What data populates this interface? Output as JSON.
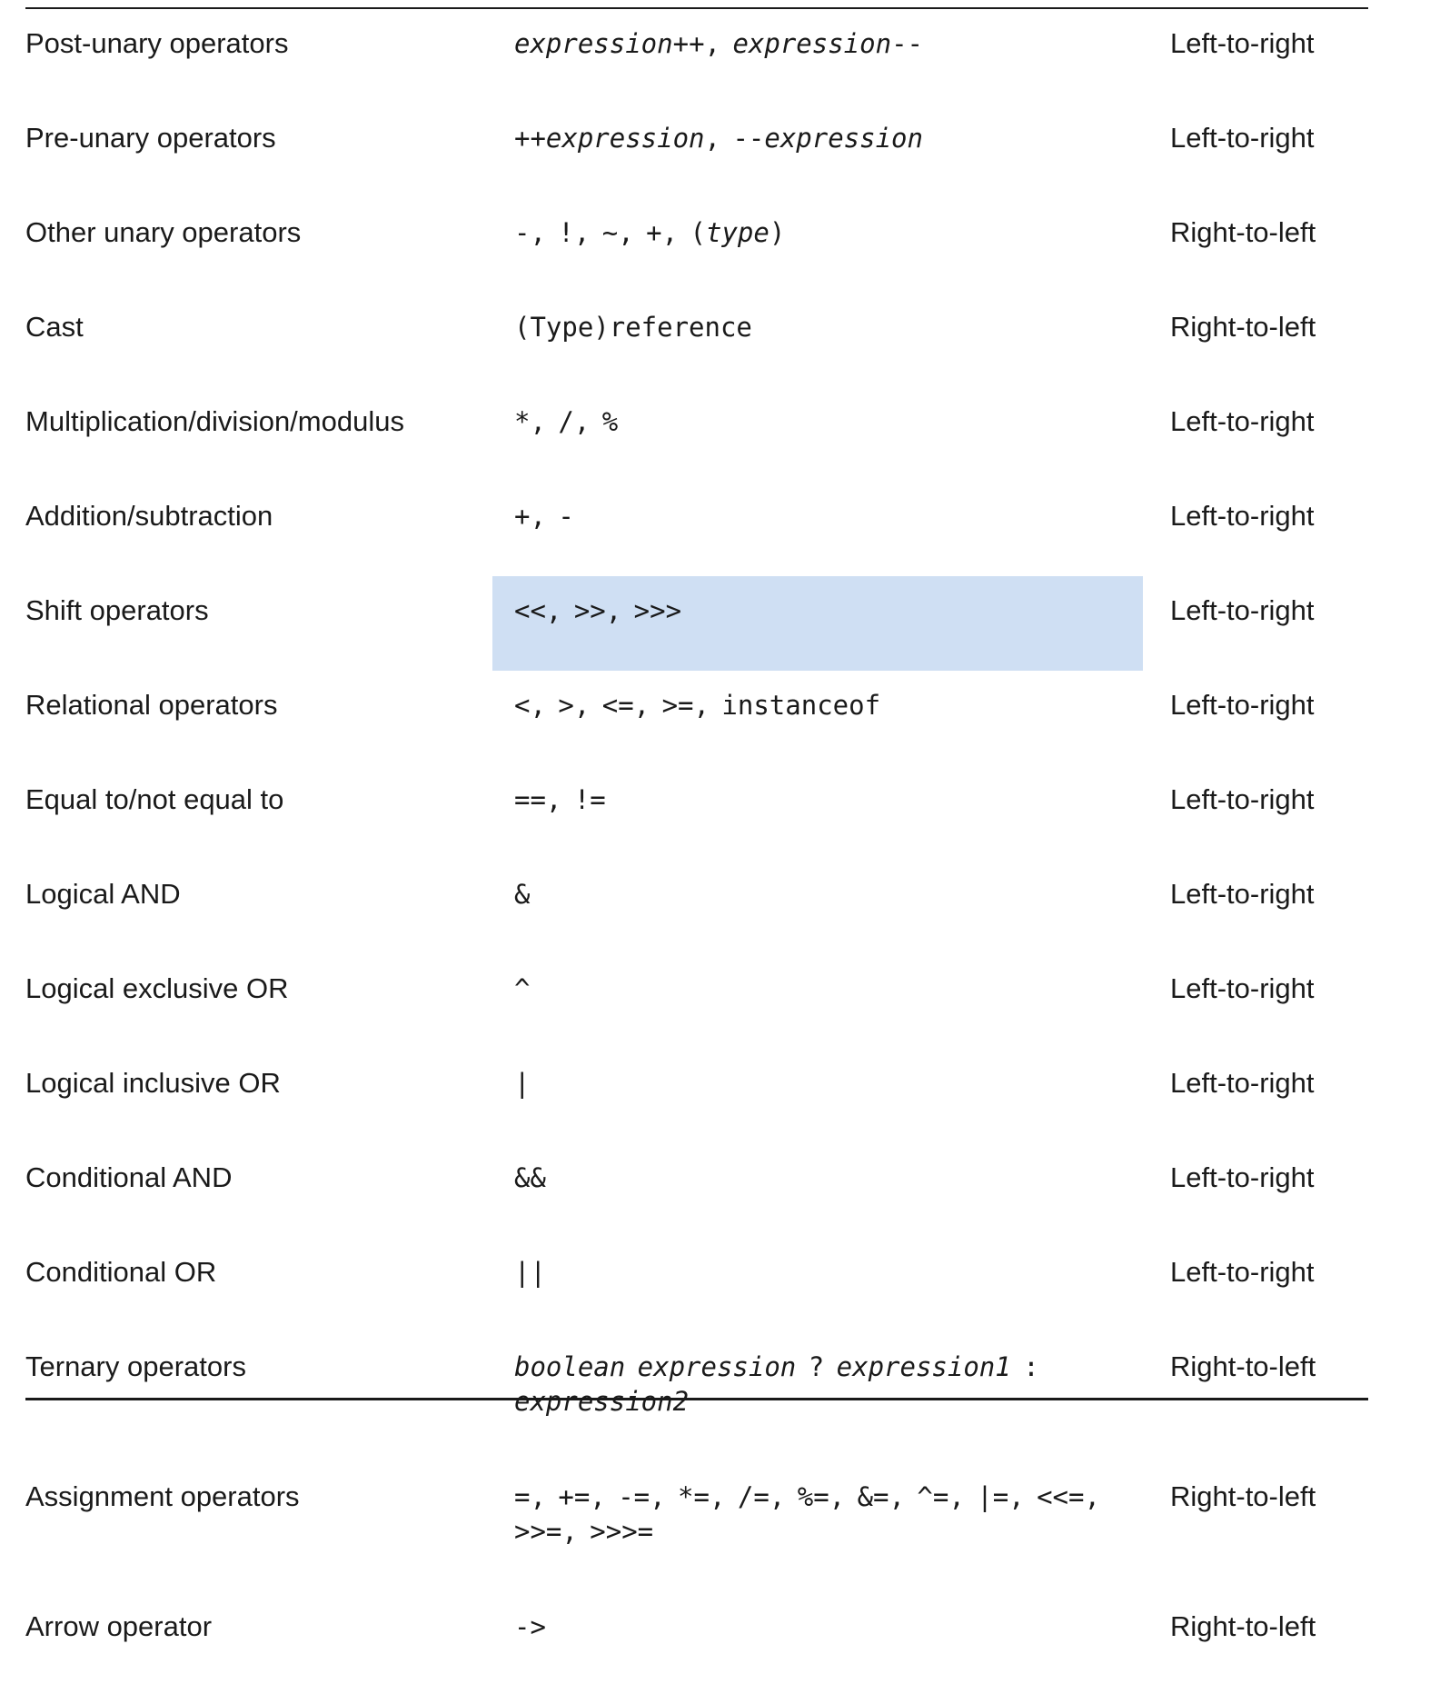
{
  "rows": [
    {
      "name": "Post-unary operators",
      "ops": "<i>expression</i>++, <i>expression</i>--",
      "assoc": "Left-to-right"
    },
    {
      "name": "Pre-unary operators",
      "ops": "++<i>expression</i>, --<i>expression</i>",
      "assoc": "Left-to-right"
    },
    {
      "name": "Other unary operators",
      "ops": "-, !, ~, +, (<i>type</i>)",
      "assoc": "Right-to-left"
    },
    {
      "name": "Cast",
      "ops": "(Type)reference",
      "assoc": "Right-to-left"
    },
    {
      "name": "Multiplication/division/modulus",
      "ops": "*, /, %",
      "assoc": "Left-to-right"
    },
    {
      "name": "Addition/subtraction",
      "ops": "+, -",
      "assoc": "Left-to-right"
    },
    {
      "name": "Shift operators",
      "ops": "&lt;&lt;, &gt;&gt;, &gt;&gt;&gt;",
      "assoc": "Left-to-right",
      "highlighted": true
    },
    {
      "name": "Relational operators",
      "ops": "&lt;, &gt;, &lt;=, &gt;=, instanceof",
      "assoc": "Left-to-right"
    },
    {
      "name": "Equal to/not equal to",
      "ops": "==, !=",
      "assoc": "Left-to-right"
    },
    {
      "name": "Logical AND",
      "ops": "&amp;",
      "assoc": "Left-to-right"
    },
    {
      "name": "Logical exclusive OR",
      "ops": "^",
      "assoc": "Left-to-right"
    },
    {
      "name": "Logical inclusive OR",
      "ops": "|",
      "assoc": "Left-to-right"
    },
    {
      "name": "Conditional AND",
      "ops": "&amp;&amp;",
      "assoc": "Left-to-right"
    },
    {
      "name": "Conditional OR",
      "ops": "||",
      "assoc": "Left-to-right"
    },
    {
      "name": "Ternary operators",
      "ops": "<i>boolean expression</i> ? <i>expression1</i> : <i>expression2</i>",
      "assoc": "Right-to-left",
      "tall": true
    },
    {
      "name": "Assignment operators",
      "ops": "=, +=, -=, *=, /=, %=, &amp;=, ^=, |=, &lt;&lt;=, &gt;&gt;=, &gt;&gt;&gt;=",
      "assoc": "Right-to-left",
      "tall": true
    },
    {
      "name": "Arrow operator",
      "ops": "-&gt;",
      "assoc": "Right-to-left",
      "last": true
    }
  ],
  "colors": {
    "highlight": "#cfdff3",
    "text": "#1a1a1a",
    "rule": "#1a1a1a"
  }
}
